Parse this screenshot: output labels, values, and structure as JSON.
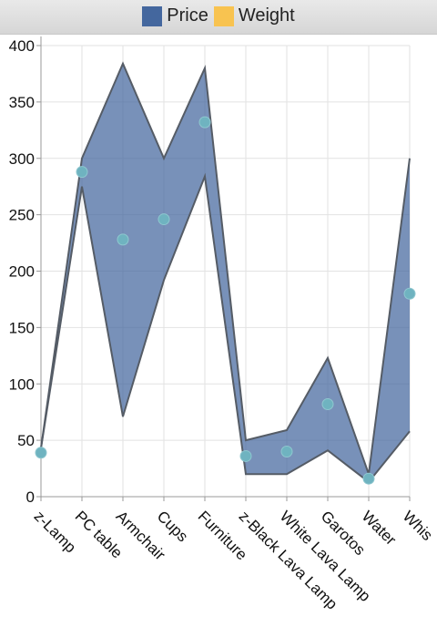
{
  "legend": {
    "items": [
      {
        "label": "Price",
        "color": "#44679e"
      },
      {
        "label": "Weight",
        "color": "#f8c350"
      }
    ]
  },
  "chart_data": {
    "type": "area",
    "subtype": "range-area-with-points",
    "categories": [
      "z-Lamp",
      "PC table",
      "Armchair",
      "Cups",
      "Furniture",
      "z-Black Lava Lamp",
      "White Lava Lamp",
      "Garotos",
      "Water",
      "Whis"
    ],
    "series": [
      {
        "name": "Price",
        "color": "#44679e",
        "low": [
          43,
          275,
          71,
          192,
          284,
          20,
          20,
          41,
          13,
          58
        ],
        "high": [
          43,
          300,
          384,
          300,
          380,
          50,
          59,
          123,
          20,
          300
        ]
      },
      {
        "name": "Weight",
        "color": "#6fb3c0",
        "values": [
          39,
          288,
          228,
          246,
          332,
          36,
          40,
          82,
          16,
          180
        ]
      }
    ],
    "ylim": [
      0,
      400
    ],
    "yticks": [
      "0",
      "50",
      "100",
      "150",
      "200",
      "250",
      "300",
      "350",
      "400"
    ],
    "grid": true,
    "legend_position": "top"
  }
}
